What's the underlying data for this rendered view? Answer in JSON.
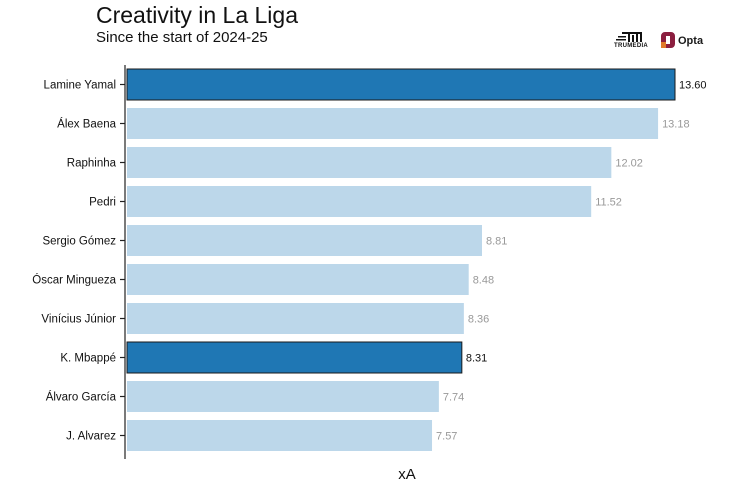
{
  "header": {
    "title": "Creativity in La Liga",
    "subtitle": "Since the start of 2024-25"
  },
  "logos": {
    "trumedia": "TRUMEDIA",
    "opta": "Opta"
  },
  "colors": {
    "highlight": "#1f77b4",
    "normal": "#bcd7ea",
    "value_highlight": "#111111",
    "value_normal": "#999999",
    "opta_accent": "#8b1e3f",
    "opta_accent2": "#e07a2b"
  },
  "chart_data": {
    "type": "bar",
    "orientation": "horizontal",
    "title": "Creativity in La Liga",
    "subtitle": "Since the start of 2024-25",
    "xlabel": "xA",
    "ylabel": "",
    "xlim": [
      0,
      13.6
    ],
    "grid": false,
    "categories": [
      "Lamine Yamal",
      "Álex Baena",
      "Raphinha",
      "Pedri",
      "Sergio Gómez",
      "Óscar Mingueza",
      "Vinícius Júnior",
      "K. Mbappé",
      "Álvaro García",
      "J. Alvarez"
    ],
    "values": [
      13.6,
      13.18,
      12.02,
      11.52,
      8.81,
      8.48,
      8.36,
      8.31,
      7.74,
      7.57
    ],
    "value_labels": [
      "13.60",
      "13.18",
      "12.02",
      "11.52",
      "8.81",
      "8.48",
      "8.36",
      "8.31",
      "7.74",
      "7.57"
    ],
    "highlighted": [
      "Lamine Yamal",
      "K. Mbappé"
    ]
  }
}
